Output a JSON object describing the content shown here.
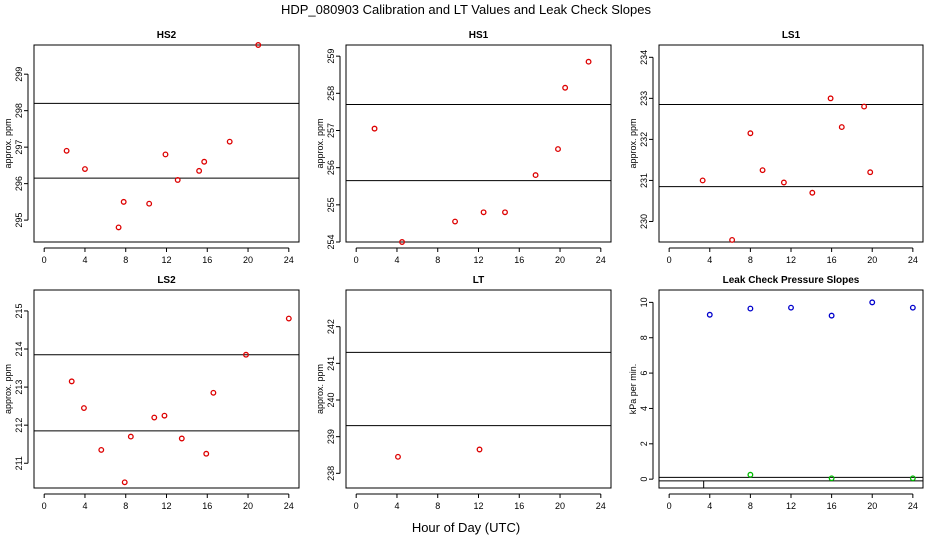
{
  "figure": {
    "title": "HDP_080903  Calibration and LT Values and Leak Check Slopes",
    "xlabel": "Hour of Day (UTC)"
  },
  "chart_data": [
    {
      "type": "scatter",
      "title": "HS2",
      "ylabel": "approx. ppm",
      "xlim": [
        -1,
        25
      ],
      "ylim": [
        294.4,
        299.8
      ],
      "xticks": [
        0,
        4,
        8,
        12,
        16,
        20,
        24
      ],
      "yticks": [
        295,
        296,
        297,
        298,
        299
      ],
      "hlines": [
        298.2,
        296.15
      ],
      "series": [
        {
          "color": "#dd0000",
          "x": [
            2.2,
            4.0,
            7.3,
            7.8,
            10.3,
            11.9,
            13.1,
            15.2,
            15.7,
            18.2,
            21.0
          ],
          "y": [
            296.9,
            296.4,
            294.8,
            295.5,
            295.45,
            296.8,
            296.1,
            296.35,
            296.6,
            297.15,
            299.8
          ]
        }
      ]
    },
    {
      "type": "scatter",
      "title": "HS1",
      "ylabel": "approx. ppm",
      "xlim": [
        -1,
        25
      ],
      "ylim": [
        254.0,
        259.3
      ],
      "xticks": [
        0,
        4,
        8,
        12,
        16,
        20,
        24
      ],
      "yticks": [
        254,
        255,
        256,
        257,
        258,
        259
      ],
      "hlines": [
        257.7,
        255.65
      ],
      "series": [
        {
          "color": "#dd0000",
          "x": [
            1.8,
            4.5,
            9.7,
            12.5,
            14.6,
            17.6,
            19.8,
            20.5,
            22.8
          ],
          "y": [
            257.05,
            254.0,
            254.55,
            254.8,
            254.8,
            255.8,
            256.5,
            258.15,
            258.85
          ]
        }
      ]
    },
    {
      "type": "scatter",
      "title": "LS1",
      "ylabel": "approx. ppm",
      "xlim": [
        -1,
        25
      ],
      "ylim": [
        229.5,
        234.3
      ],
      "xticks": [
        0,
        4,
        8,
        12,
        16,
        20,
        24
      ],
      "yticks": [
        230,
        231,
        232,
        233,
        234
      ],
      "hlines": [
        232.85,
        230.85
      ],
      "series": [
        {
          "color": "#dd0000",
          "x": [
            3.3,
            6.2,
            8.0,
            9.2,
            11.3,
            14.1,
            15.9,
            17.0,
            19.2,
            19.8
          ],
          "y": [
            231.0,
            229.55,
            232.15,
            231.25,
            230.95,
            230.7,
            233.0,
            232.3,
            232.8,
            231.2
          ]
        }
      ]
    },
    {
      "type": "scatter",
      "title": "LS2",
      "ylabel": "approx. ppm",
      "xlim": [
        -1,
        25
      ],
      "ylim": [
        210.35,
        215.55
      ],
      "xticks": [
        0,
        4,
        8,
        12,
        16,
        20,
        24
      ],
      "yticks": [
        211,
        212,
        213,
        214,
        215
      ],
      "hlines": [
        213.85,
        211.85
      ],
      "series": [
        {
          "color": "#dd0000",
          "x": [
            2.7,
            3.9,
            5.6,
            7.9,
            8.5,
            10.8,
            11.8,
            13.5,
            15.9,
            16.6,
            19.8,
            24.0
          ],
          "y": [
            213.15,
            212.45,
            211.35,
            210.5,
            211.7,
            212.2,
            212.25,
            211.65,
            211.25,
            212.85,
            213.85,
            214.8
          ]
        }
      ]
    },
    {
      "type": "scatter",
      "title": "LT",
      "ylabel": "approx. ppm",
      "xlim": [
        -1,
        25
      ],
      "ylim": [
        237.6,
        243.0
      ],
      "xticks": [
        0,
        4,
        8,
        12,
        16,
        20,
        24
      ],
      "yticks": [
        238,
        239,
        240,
        241,
        242
      ],
      "hlines": [
        241.3,
        239.3
      ],
      "series": [
        {
          "color": "#dd0000",
          "x": [
            4.1,
            12.1
          ],
          "y": [
            238.45,
            238.65
          ]
        }
      ]
    },
    {
      "type": "scatter",
      "title": "Leak Check Pressure Slopes",
      "ylabel": "kPa per min.",
      "xlim": [
        -1,
        25
      ],
      "ylim": [
        -0.5,
        10.7
      ],
      "xticks": [
        0,
        4,
        8,
        12,
        16,
        20,
        24
      ],
      "yticks": [
        0,
        2,
        4,
        6,
        8,
        10
      ],
      "hlines": [
        0.1,
        -0.1
      ],
      "series": [
        {
          "color": "#0000cc",
          "x": [
            4.0,
            8.0,
            12.0,
            16.0,
            20.0,
            24.0
          ],
          "y": [
            9.3,
            9.65,
            9.7,
            9.25,
            10.0,
            9.7
          ]
        },
        {
          "color": "#00bb00",
          "x": [
            8.0,
            16.0,
            24.0
          ],
          "y": [
            0.25,
            0.05,
            0.05
          ]
        }
      ]
    }
  ]
}
